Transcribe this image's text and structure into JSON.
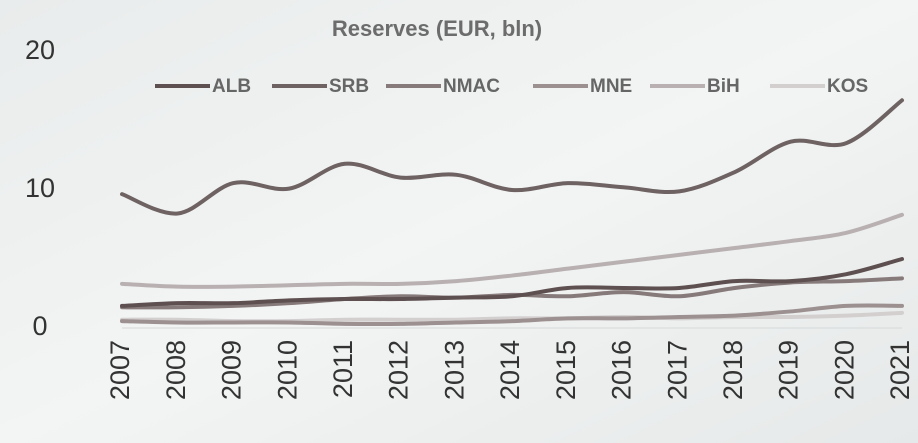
{
  "chart_data": {
    "type": "line",
    "title": "Reserves (EUR, bln)",
    "categories": [
      "2007",
      "2008",
      "2009",
      "2010",
      "2011",
      "2012",
      "2013",
      "2014",
      "2015",
      "2016",
      "2017",
      "2018",
      "2019",
      "2020",
      "2021"
    ],
    "series": [
      {
        "name": "ALB",
        "color": "#5e5050",
        "values": [
          1.6,
          1.8,
          1.8,
          2.0,
          2.1,
          2.1,
          2.2,
          2.3,
          2.9,
          2.9,
          2.9,
          3.4,
          3.4,
          3.9,
          5.0
        ]
      },
      {
        "name": "SRB",
        "color": "#6e6262",
        "values": [
          9.7,
          8.3,
          10.5,
          10.1,
          11.9,
          10.9,
          11.1,
          10.0,
          10.5,
          10.2,
          9.9,
          11.3,
          13.5,
          13.4,
          16.5
        ]
      },
      {
        "name": "NMAC",
        "color": "#877a7a",
        "values": [
          1.5,
          1.5,
          1.6,
          1.8,
          2.1,
          2.3,
          2.2,
          2.4,
          2.3,
          2.6,
          2.3,
          2.9,
          3.3,
          3.4,
          3.6
        ]
      },
      {
        "name": "MNE",
        "color": "#9c9090",
        "values": [
          0.5,
          0.4,
          0.4,
          0.4,
          0.3,
          0.3,
          0.4,
          0.5,
          0.7,
          0.7,
          0.8,
          0.9,
          1.2,
          1.6,
          1.6
        ]
      },
      {
        "name": "BiH",
        "color": "#b9b1b1",
        "values": [
          3.2,
          3.0,
          3.0,
          3.1,
          3.2,
          3.2,
          3.4,
          3.8,
          4.3,
          4.8,
          5.3,
          5.8,
          6.3,
          6.9,
          8.2
        ]
      },
      {
        "name": "KOS",
        "color": "#d3cfcf",
        "values": [
          0.6,
          0.6,
          0.5,
          0.5,
          0.6,
          0.6,
          0.6,
          0.7,
          0.7,
          0.8,
          0.7,
          0.8,
          0.8,
          0.9,
          1.1
        ]
      }
    ],
    "ylim": [
      0,
      20
    ],
    "yticks": [
      0,
      10,
      20
    ],
    "grid": false
  }
}
